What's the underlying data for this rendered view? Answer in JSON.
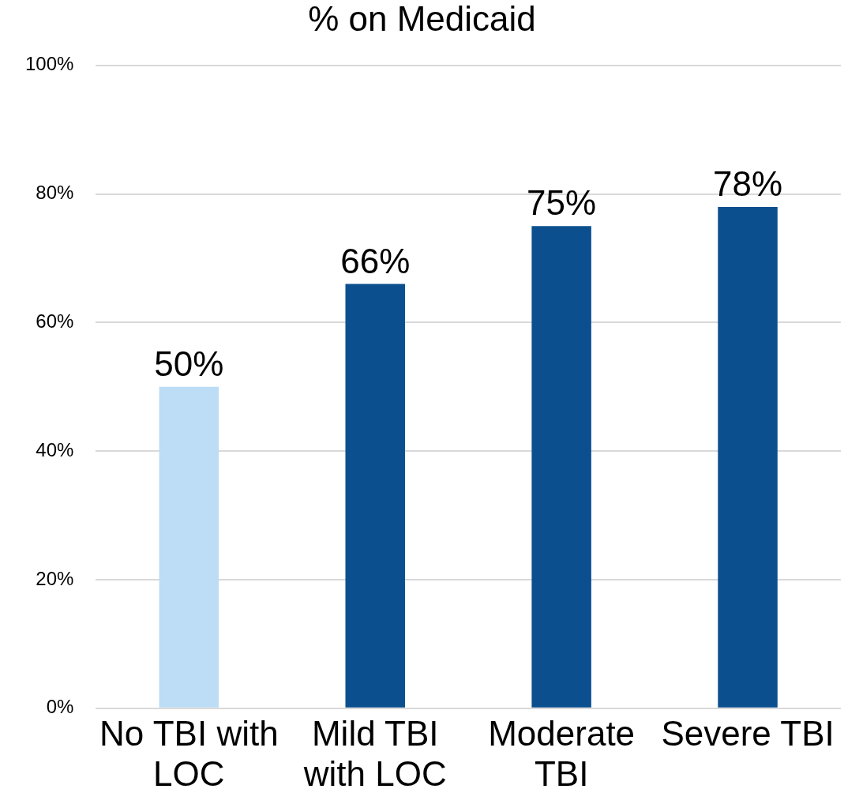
{
  "chart_data": {
    "type": "bar",
    "title": "% on Medicaid",
    "categories": [
      "No TBI with LOC",
      "Mild TBI with LOC",
      "Moderate TBI",
      "Severe TBI"
    ],
    "values": [
      50,
      66,
      75,
      78
    ],
    "colors": [
      "#bddcf5",
      "#0b4f8e",
      "#0b4f8e",
      "#0b4f8e"
    ],
    "value_labels": [
      "50%",
      "66%",
      "75%",
      "78%"
    ],
    "ylim": [
      0,
      100
    ],
    "yticks": [
      {
        "value": 0,
        "label": "0%"
      },
      {
        "value": 20,
        "label": "20%"
      },
      {
        "value": 40,
        "label": "40%"
      },
      {
        "value": 60,
        "label": "60%"
      },
      {
        "value": 80,
        "label": "80%"
      },
      {
        "value": 100,
        "label": "100%"
      }
    ],
    "grid": "y",
    "legend": false
  }
}
